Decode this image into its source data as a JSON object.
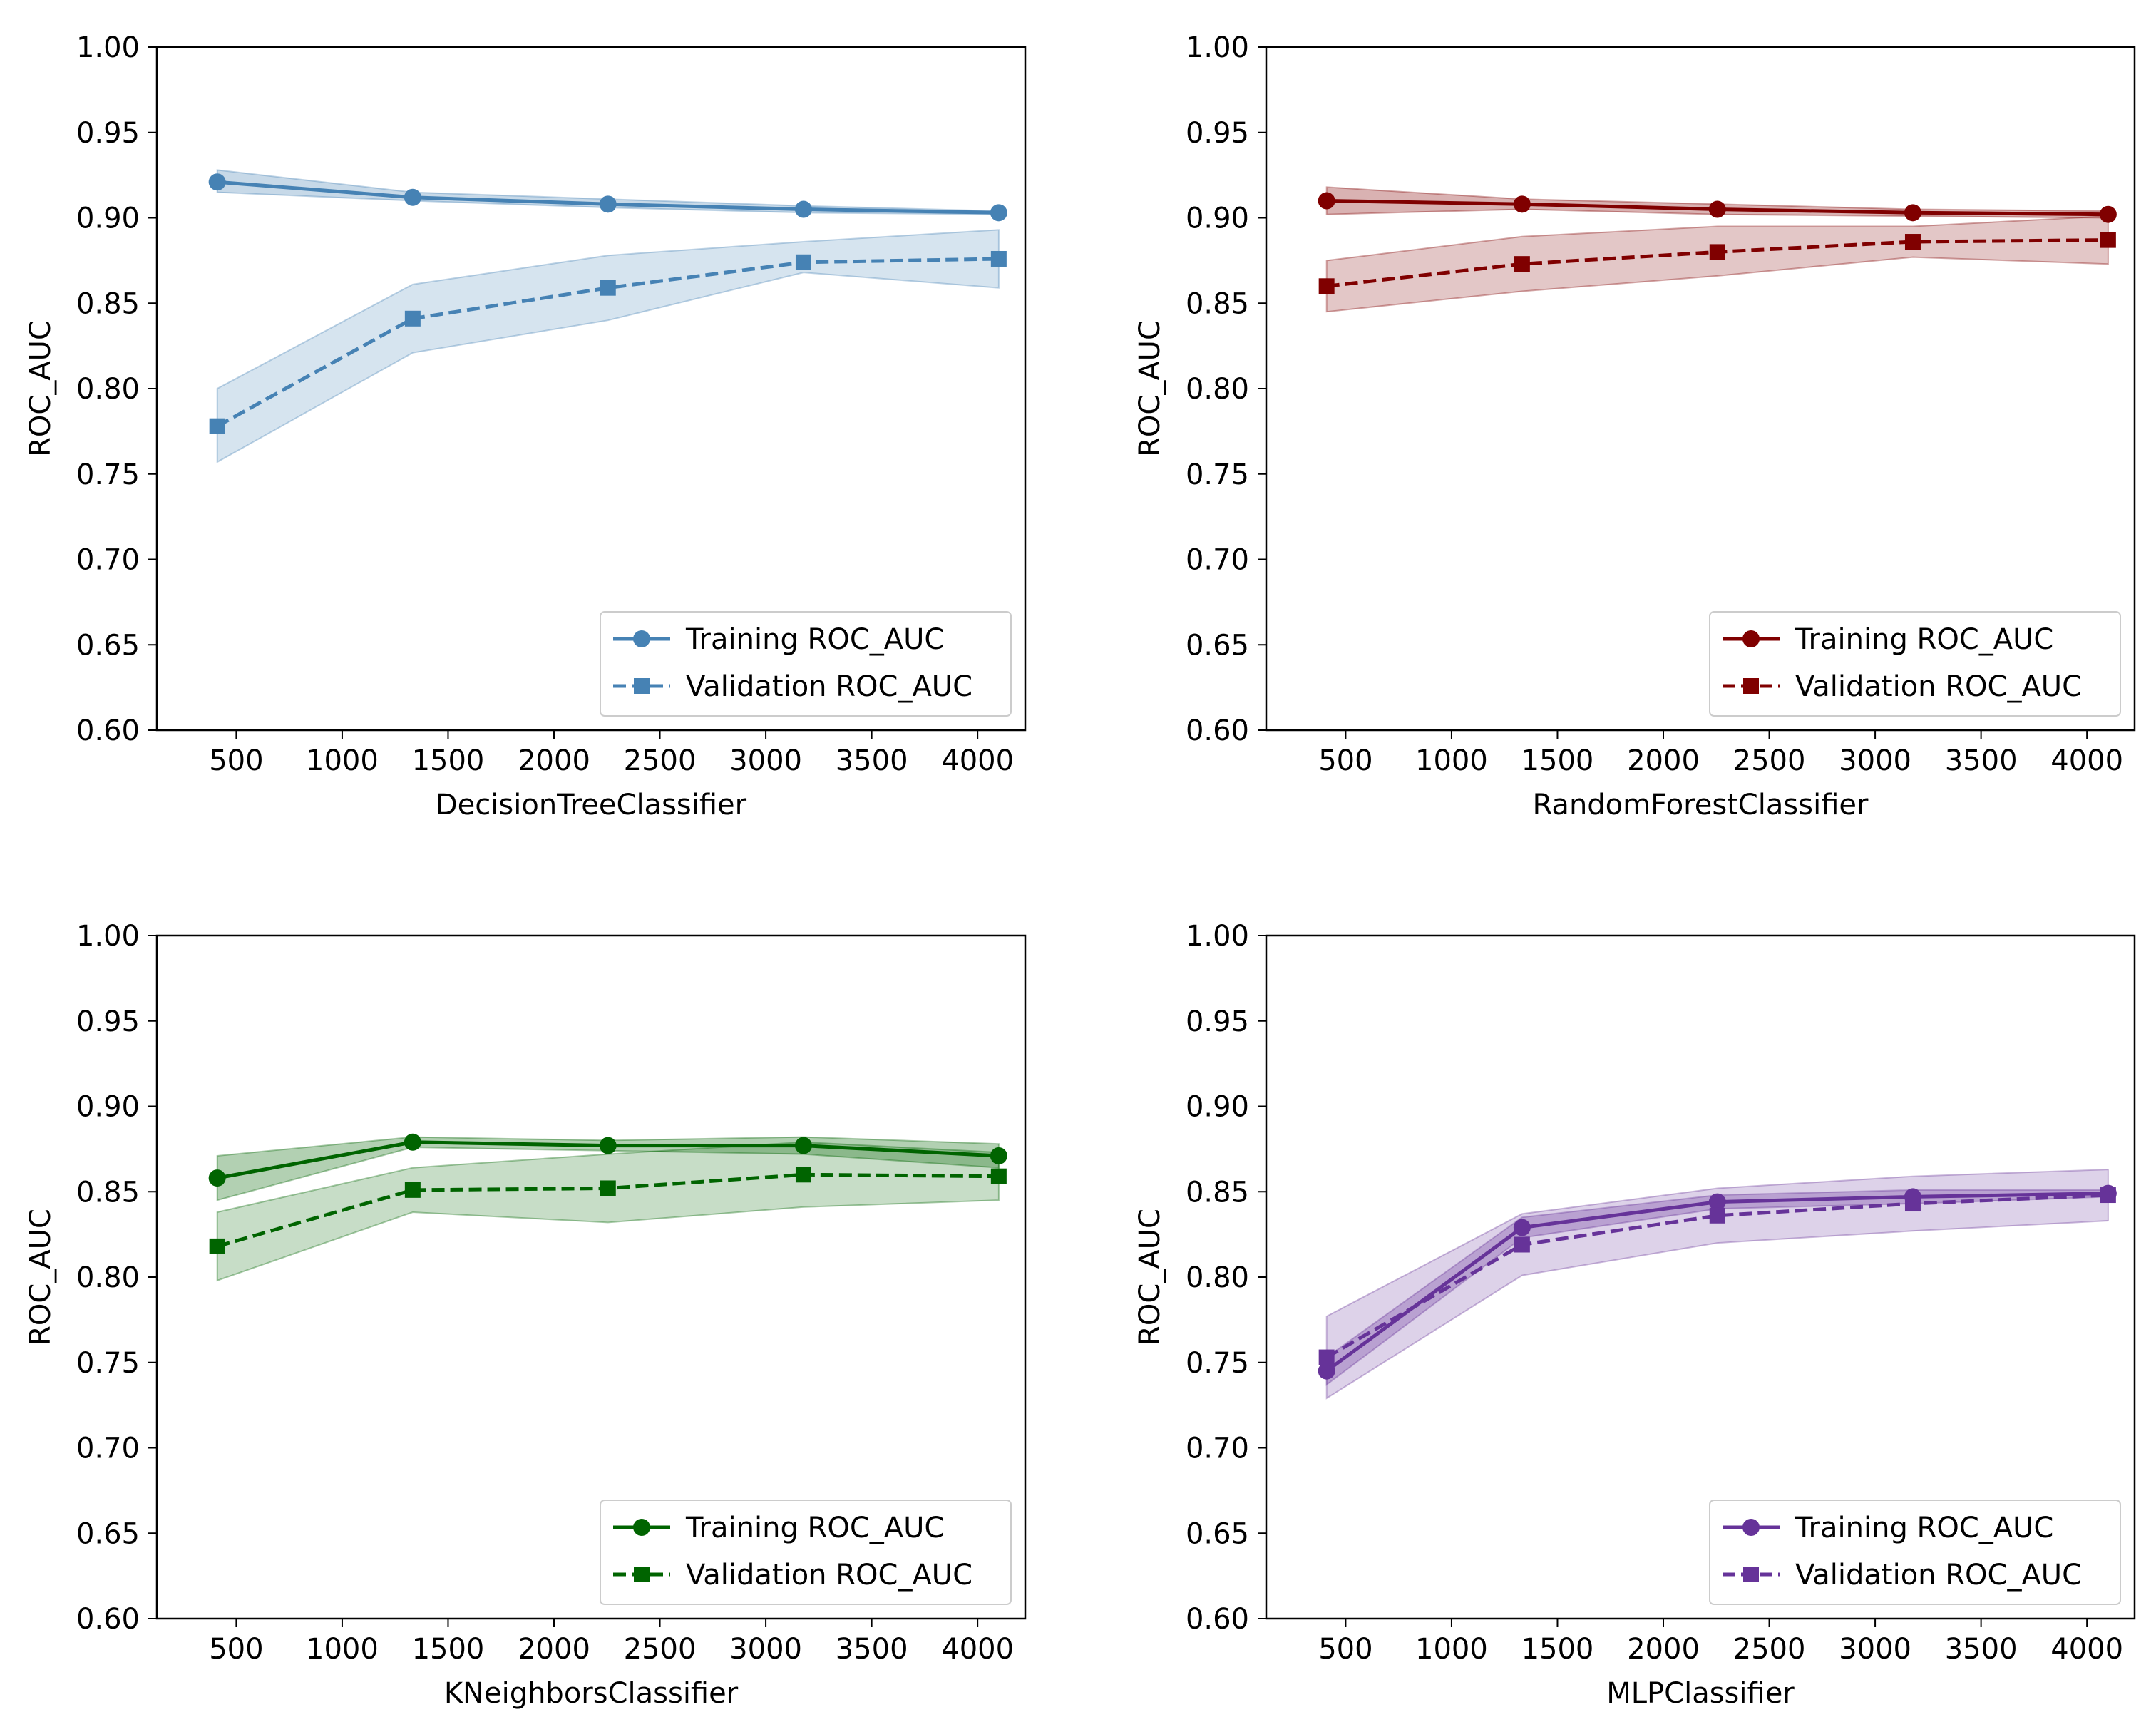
{
  "chart_data": [
    {
      "type": "line",
      "id": "dt",
      "xlabel": "DecisionTreeClassifier",
      "ylabel": "ROC_AUC",
      "color": "#4682b4",
      "ylim": [
        0.6,
        1.0
      ],
      "xlim": [
        125,
        4225
      ],
      "xticks": [
        500,
        1000,
        1500,
        2000,
        2500,
        3000,
        3500,
        4000
      ],
      "yticks": [
        "0.60",
        "0.65",
        "0.70",
        "0.75",
        "0.80",
        "0.85",
        "0.90",
        "0.95",
        "1.00"
      ],
      "legend_position": "lower-right",
      "x": [
        410,
        1333,
        2255,
        3178,
        4100
      ],
      "series": [
        {
          "name": "Training ROC_AUC",
          "style": "solid",
          "marker": "circle",
          "values": [
            0.921,
            0.912,
            0.908,
            0.905,
            0.903
          ],
          "lower": [
            0.915,
            0.91,
            0.906,
            0.903,
            0.902
          ],
          "upper": [
            0.928,
            0.915,
            0.911,
            0.907,
            0.904
          ]
        },
        {
          "name": "Validation ROC_AUC",
          "style": "dashed",
          "marker": "square",
          "values": [
            0.778,
            0.841,
            0.859,
            0.874,
            0.876
          ],
          "lower": [
            0.757,
            0.821,
            0.84,
            0.868,
            0.859
          ],
          "upper": [
            0.8,
            0.861,
            0.878,
            0.886,
            0.893
          ]
        }
      ]
    },
    {
      "type": "line",
      "id": "rf",
      "xlabel": "RandomForestClassifier",
      "ylabel": "ROC_AUC",
      "color": "#800000",
      "ylim": [
        0.6,
        1.0
      ],
      "xlim": [
        125,
        4225
      ],
      "xticks": [
        500,
        1000,
        1500,
        2000,
        2500,
        3000,
        3500,
        4000
      ],
      "yticks": [
        "0.60",
        "0.65",
        "0.70",
        "0.75",
        "0.80",
        "0.85",
        "0.90",
        "0.95",
        "1.00"
      ],
      "legend_position": "lower-right",
      "x": [
        410,
        1333,
        2255,
        3178,
        4100
      ],
      "series": [
        {
          "name": "Training ROC_AUC",
          "style": "solid",
          "marker": "circle",
          "values": [
            0.91,
            0.908,
            0.905,
            0.903,
            0.902
          ],
          "lower": [
            0.902,
            0.905,
            0.902,
            0.901,
            0.9
          ],
          "upper": [
            0.918,
            0.911,
            0.908,
            0.905,
            0.904
          ]
        },
        {
          "name": "Validation ROC_AUC",
          "style": "dashed",
          "marker": "square",
          "values": [
            0.86,
            0.873,
            0.88,
            0.886,
            0.887
          ],
          "lower": [
            0.845,
            0.857,
            0.866,
            0.877,
            0.873
          ],
          "upper": [
            0.875,
            0.889,
            0.895,
            0.895,
            0.901
          ]
        }
      ]
    },
    {
      "type": "line",
      "id": "kn",
      "xlabel": "KNeighborsClassifier",
      "ylabel": "ROC_AUC",
      "color": "#006400",
      "ylim": [
        0.6,
        1.0
      ],
      "xlim": [
        125,
        4225
      ],
      "xticks": [
        500,
        1000,
        1500,
        2000,
        2500,
        3000,
        3500,
        4000
      ],
      "yticks": [
        "0.60",
        "0.65",
        "0.70",
        "0.75",
        "0.80",
        "0.85",
        "0.90",
        "0.95",
        "1.00"
      ],
      "legend_position": "lower-right",
      "x": [
        410,
        1333,
        2255,
        3178,
        4100
      ],
      "series": [
        {
          "name": "Training ROC_AUC",
          "style": "solid",
          "marker": "circle",
          "values": [
            0.858,
            0.879,
            0.877,
            0.877,
            0.871
          ],
          "lower": [
            0.845,
            0.876,
            0.874,
            0.872,
            0.864
          ],
          "upper": [
            0.871,
            0.882,
            0.88,
            0.882,
            0.878
          ]
        },
        {
          "name": "Validation ROC_AUC",
          "style": "dashed",
          "marker": "square",
          "values": [
            0.818,
            0.851,
            0.852,
            0.86,
            0.859
          ],
          "lower": [
            0.798,
            0.838,
            0.832,
            0.841,
            0.845
          ],
          "upper": [
            0.838,
            0.864,
            0.872,
            0.879,
            0.873
          ]
        }
      ]
    },
    {
      "type": "line",
      "id": "mlp",
      "xlabel": "MLPClassifier",
      "ylabel": "ROC_AUC",
      "color": "#663399",
      "ylim": [
        0.6,
        1.0
      ],
      "xlim": [
        125,
        4225
      ],
      "xticks": [
        500,
        1000,
        1500,
        2000,
        2500,
        3000,
        3500,
        4000
      ],
      "yticks": [
        "0.60",
        "0.65",
        "0.70",
        "0.75",
        "0.80",
        "0.85",
        "0.90",
        "0.95",
        "1.00"
      ],
      "legend_position": "lower-right",
      "x": [
        410,
        1333,
        2255,
        3178,
        4100
      ],
      "series": [
        {
          "name": "Training ROC_AUC",
          "style": "solid",
          "marker": "circle",
          "values": [
            0.745,
            0.829,
            0.844,
            0.847,
            0.849
          ],
          "lower": [
            0.737,
            0.823,
            0.84,
            0.843,
            0.847
          ],
          "upper": [
            0.753,
            0.835,
            0.848,
            0.851,
            0.851
          ]
        },
        {
          "name": "Validation ROC_AUC",
          "style": "dashed",
          "marker": "square",
          "values": [
            0.753,
            0.819,
            0.836,
            0.843,
            0.848
          ],
          "lower": [
            0.729,
            0.801,
            0.82,
            0.827,
            0.833
          ],
          "upper": [
            0.777,
            0.837,
            0.852,
            0.859,
            0.863
          ]
        }
      ]
    }
  ]
}
